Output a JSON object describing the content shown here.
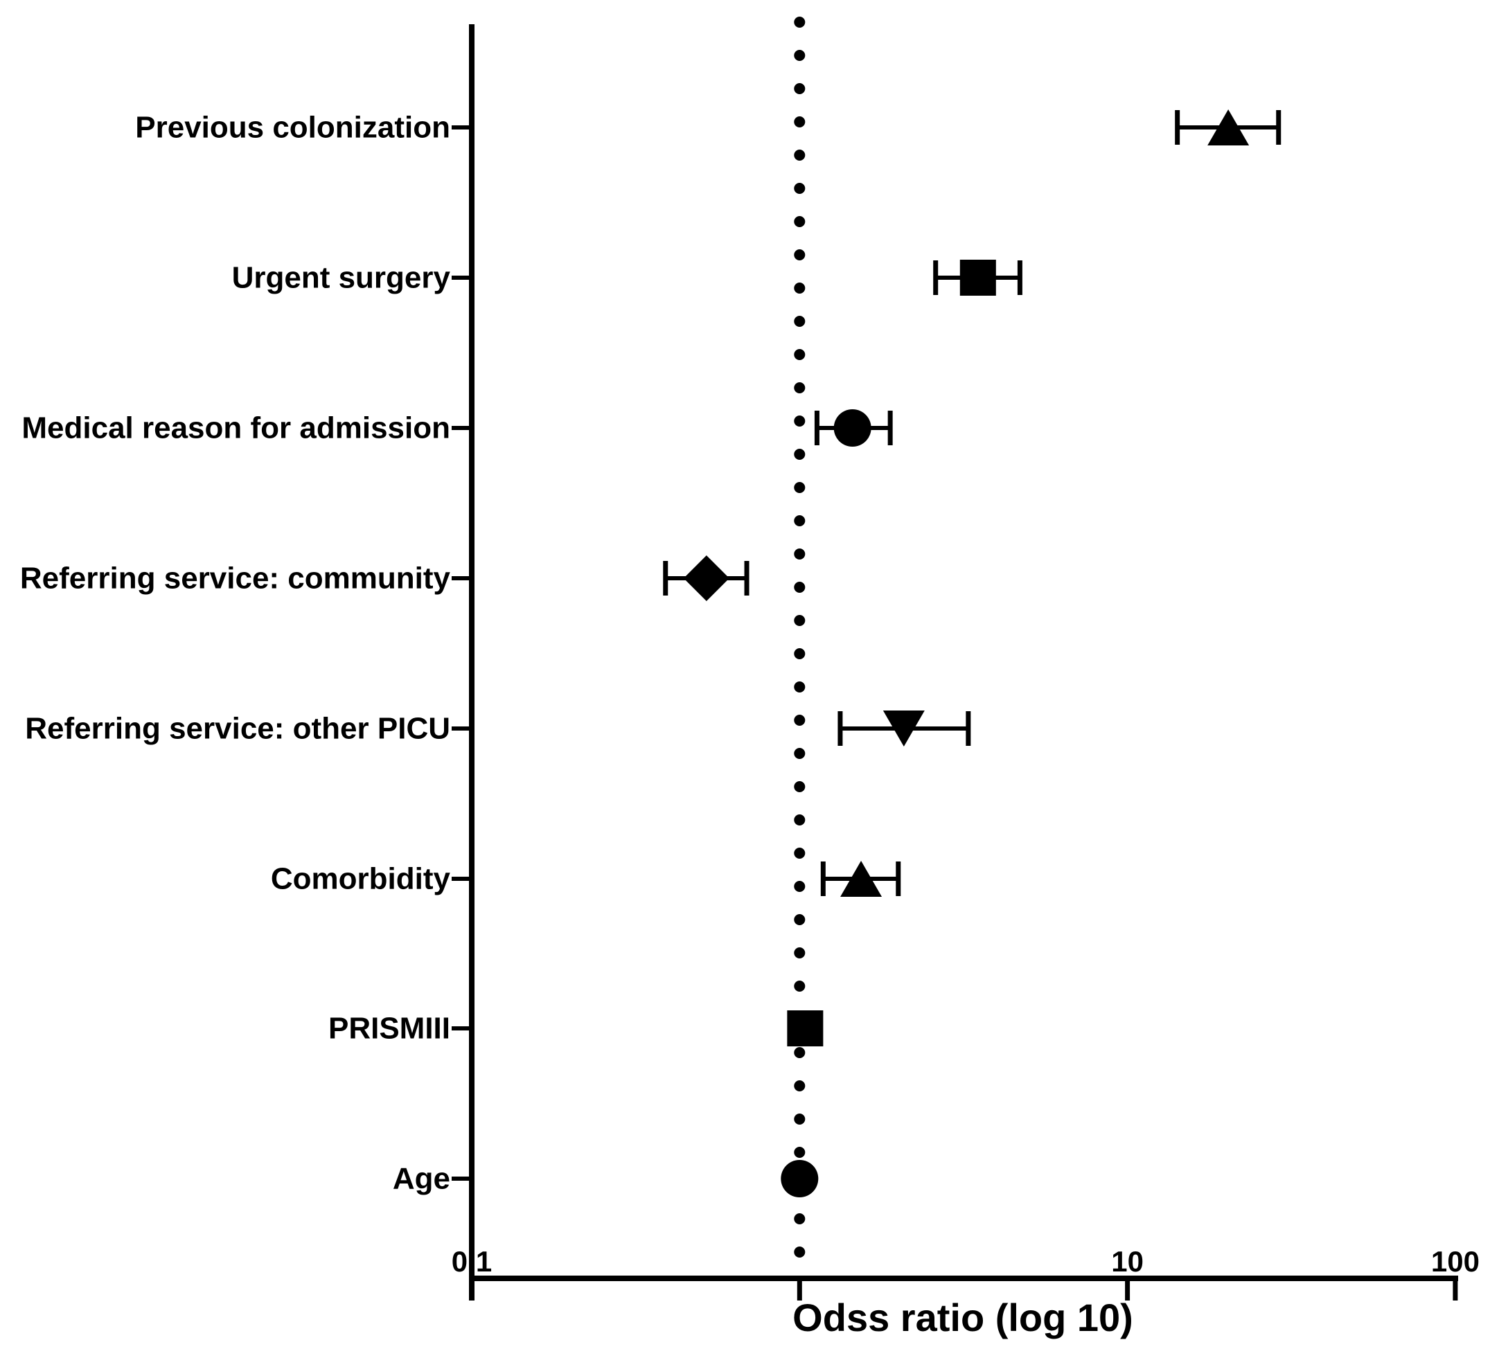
{
  "figure": {
    "background": "#ffffff",
    "ink_color": "#000000"
  },
  "chart_data": {
    "type": "scatter",
    "variant": "forest-plot",
    "title": "",
    "xlabel": "Odss ratio (log 10)",
    "ylabel": "",
    "x_scale": "log10",
    "xlim": [
      0.1,
      100
    ],
    "grid": false,
    "legend": false,
    "x_ticks": [
      {
        "value": 0.1,
        "label": "0.1"
      },
      {
        "value": 1,
        "label": ""
      },
      {
        "value": 10,
        "label": "10"
      },
      {
        "value": 100,
        "label": "100"
      }
    ],
    "reference_line": {
      "x": 1.0,
      "style": "dotted-vertical"
    },
    "rows": [
      {
        "label": "Previous colonization",
        "marker": "triangle-up",
        "or": 20.3,
        "ci_low": 14.2,
        "ci_high": 28.9
      },
      {
        "label": "Urgent surgery",
        "marker": "square",
        "or": 3.5,
        "ci_low": 2.6,
        "ci_high": 4.7
      },
      {
        "label": "Medical reason for admission",
        "marker": "circle",
        "or": 1.45,
        "ci_low": 1.13,
        "ci_high": 1.89
      },
      {
        "label": "Referring service: community",
        "marker": "diamond",
        "or": 0.52,
        "ci_low": 0.39,
        "ci_high": 0.69
      },
      {
        "label": "Referring service: other PICU",
        "marker": "triangle-down",
        "or": 2.08,
        "ci_low": 1.33,
        "ci_high": 3.27
      },
      {
        "label": "Comorbidity",
        "marker": "triangle-up",
        "or": 1.54,
        "ci_low": 1.18,
        "ci_high": 2.0
      },
      {
        "label": "PRISMIII",
        "marker": "square",
        "or": 1.04,
        "ci_low": null,
        "ci_high": null
      },
      {
        "label": "Age",
        "marker": "circle",
        "or": 1.0,
        "ci_low": null,
        "ci_high": null
      }
    ]
  }
}
